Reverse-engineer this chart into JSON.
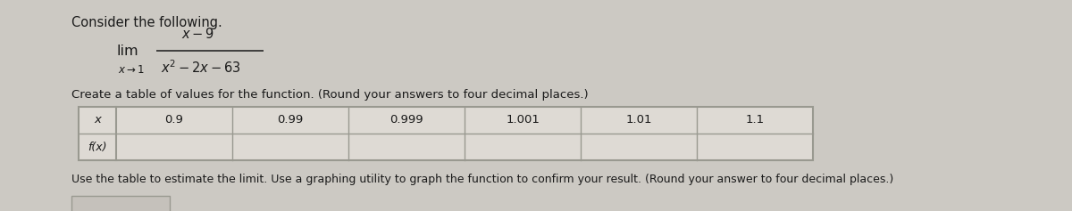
{
  "bg_color": "#ccc9c3",
  "title_text": "Consider the following.",
  "numerator": "$x - 9$",
  "denominator": "$x^2 - 2x - 63$",
  "lim_text": "lim",
  "lim_sub": "$x\\to1$",
  "table_instruction": "Create a table of values for the function. (Round your answers to four decimal places.)",
  "x_values": [
    "0.9",
    "0.99",
    "0.999",
    "1.001",
    "1.01",
    "1.1"
  ],
  "fx_label": "f(x)",
  "x_label": "x",
  "bottom_text": "Use the table to estimate the limit. Use a graphing utility to graph the function to confirm your result. (Round your answer to four decimal places.)",
  "table_bg": "#dedad4",
  "table_border": "#999990",
  "text_color": "#1a1a1a",
  "answer_box_color": "#c5c1bb",
  "font_size_main": 10.5,
  "font_size_math": 10.5,
  "font_size_table": 9.5,
  "font_size_bottom": 9.0
}
